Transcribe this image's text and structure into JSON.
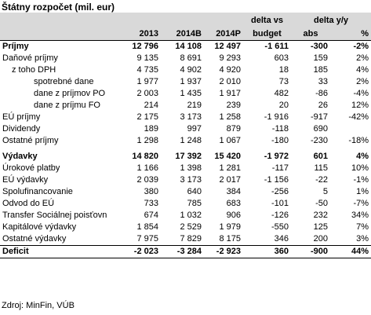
{
  "title": "Štátny rozpočet (mil. eur)",
  "header": {
    "delta_budget_l1": "delta vs",
    "delta_budget_l2": "budget",
    "delta_yy": "delta y/y",
    "col_2013": "2013",
    "col_2014b": "2014B",
    "col_2014p": "2014P",
    "col_abs": "abs",
    "col_pct": "%"
  },
  "rows": [
    {
      "label": "Príjmy",
      "v2013": "12 796",
      "v2014b": "14 108",
      "v2014p": "12 497",
      "dbud": "-1 611",
      "abs": "-300",
      "pct": "-2%"
    },
    {
      "label": "Daňové príjmy",
      "v2013": "9 135",
      "v2014b": "8 691",
      "v2014p": "9 293",
      "dbud": "603",
      "abs": "159",
      "pct": "2%"
    },
    {
      "label": "z toho DPH",
      "v2013": "4 735",
      "v2014b": "4 902",
      "v2014p": "4 920",
      "dbud": "18",
      "abs": "185",
      "pct": "4%"
    },
    {
      "label": "spotrebné dane",
      "v2013": "1 977",
      "v2014b": "1 937",
      "v2014p": "2 010",
      "dbud": "73",
      "abs": "33",
      "pct": "2%"
    },
    {
      "label": "dane z príjmov PO",
      "v2013": "2 003",
      "v2014b": "1 435",
      "v2014p": "1 917",
      "dbud": "482",
      "abs": "-86",
      "pct": "-4%"
    },
    {
      "label": "dane z príjmu FO",
      "v2013": "214",
      "v2014b": "219",
      "v2014p": "239",
      "dbud": "20",
      "abs": "26",
      "pct": "12%"
    },
    {
      "label": "EÚ príjmy",
      "v2013": "2 175",
      "v2014b": "3 173",
      "v2014p": "1 258",
      "dbud": "-1 916",
      "abs": "-917",
      "pct": "-42%"
    },
    {
      "label": "Dividendy",
      "v2013": "189",
      "v2014b": "997",
      "v2014p": "879",
      "dbud": "-118",
      "abs": "690",
      "pct": ""
    },
    {
      "label": "Ostatné príjmy",
      "v2013": "1 298",
      "v2014b": "1 248",
      "v2014p": "1 067",
      "dbud": "-180",
      "abs": "-230",
      "pct": "-18%"
    },
    {
      "label": "Výdavky",
      "v2013": "14 820",
      "v2014b": "17 392",
      "v2014p": "15 420",
      "dbud": "-1 972",
      "abs": "601",
      "pct": "4%"
    },
    {
      "label": "Úrokové platby",
      "v2013": "1 166",
      "v2014b": "1 398",
      "v2014p": "1 281",
      "dbud": "-117",
      "abs": "115",
      "pct": "10%"
    },
    {
      "label": "EÚ výdavky",
      "v2013": "2 039",
      "v2014b": "3 173",
      "v2014p": "2 017",
      "dbud": "-1 156",
      "abs": "-22",
      "pct": "-1%"
    },
    {
      "label": "Spolufinancovanie",
      "v2013": "380",
      "v2014b": "640",
      "v2014p": "384",
      "dbud": "-256",
      "abs": "5",
      "pct": "1%"
    },
    {
      "label": "Odvod do EÚ",
      "v2013": "733",
      "v2014b": "785",
      "v2014p": "683",
      "dbud": "-101",
      "abs": "-50",
      "pct": "-7%"
    },
    {
      "label": "Transfer Sociálnej poisťovn",
      "v2013": "674",
      "v2014b": "1 032",
      "v2014p": "906",
      "dbud": "-126",
      "abs": "232",
      "pct": "34%"
    },
    {
      "label": "Kapitálové výdavky",
      "v2013": "1 854",
      "v2014b": "2 529",
      "v2014p": "1 979",
      "dbud": "-550",
      "abs": "125",
      "pct": "7%"
    },
    {
      "label": "Ostatné výdavky",
      "v2013": "7 975",
      "v2014b": "7 829",
      "v2014p": "8 175",
      "dbud": "346",
      "abs": "200",
      "pct": "3%"
    },
    {
      "label": "Deficit",
      "v2013": "-2 023",
      "v2014b": "-3 284",
      "v2014p": "-2 923",
      "dbud": "360",
      "abs": "-900",
      "pct": "44%"
    }
  ],
  "source": "Zdroj: MinFin, VÚB"
}
